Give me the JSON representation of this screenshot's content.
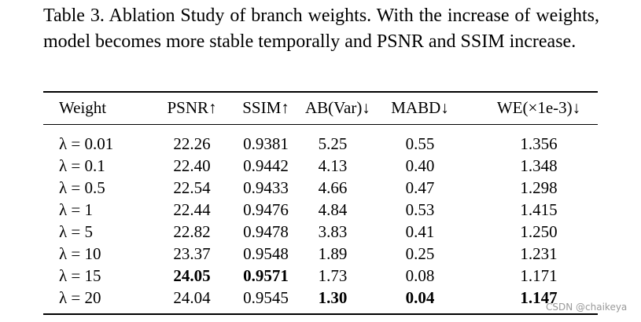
{
  "caption": "Table 3. Ablation Study of branch weights. With the increase of weights, model becomes more stable temporally and PSNR and SSIM increase.",
  "table": {
    "header": [
      "Weight",
      "PSNR↑",
      "SSIM↑",
      "AB(Var)↓",
      "MABD↓",
      "WE(×1e-3)↓"
    ],
    "rows": [
      [
        "λ = 0.01",
        "22.26",
        "0.9381",
        "5.25",
        "0.55",
        "1.356"
      ],
      [
        "λ = 0.1",
        "22.40",
        "0.9442",
        "4.13",
        "0.40",
        "1.348"
      ],
      [
        "λ = 0.5",
        "22.54",
        "0.9433",
        "4.66",
        "0.47",
        "1.298"
      ],
      [
        "λ = 1",
        "22.44",
        "0.9476",
        "4.84",
        "0.53",
        "1.415"
      ],
      [
        "λ = 5",
        "22.82",
        "0.9478",
        "3.83",
        "0.41",
        "1.250"
      ],
      [
        "λ = 10",
        "23.37",
        "0.9548",
        "1.89",
        "0.25",
        "1.231"
      ],
      [
        "λ = 15",
        "24.05",
        "0.9571",
        "1.73",
        "0.08",
        "1.171"
      ],
      [
        "λ = 20",
        "24.04",
        "0.9545",
        "1.30",
        "0.04",
        "1.147"
      ]
    ]
  },
  "watermark": "CSDN @chaikeya"
}
